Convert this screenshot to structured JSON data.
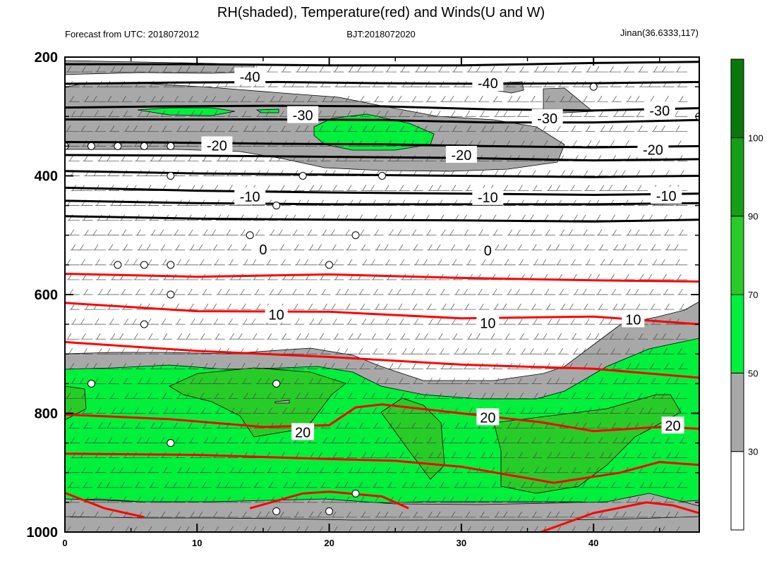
{
  "chart_data": {
    "type": "contour",
    "title": "RH(shaded), Temperature(red) and Winds(U and W)",
    "subtitle_left": "Forecast from UTC: 2018072012",
    "subtitle_center": "BJT:2018072020",
    "subtitle_right": "Jinan(36.6333,117)",
    "x_range": [
      0,
      48
    ],
    "x_ticks": [
      "0",
      "10",
      "20",
      "30",
      "40"
    ],
    "x_tick_values": [
      0,
      10,
      20,
      30,
      40
    ],
    "y_range": [
      200,
      1000
    ],
    "y_ticks": [
      "200",
      "400",
      "600",
      "800",
      "1000"
    ],
    "y_tick_values": [
      200,
      400,
      600,
      800,
      1000
    ],
    "colorbar": {
      "labels": [
        "30",
        "50",
        "70",
        "90",
        "100"
      ],
      "bins": [
        {
          "from": 0,
          "to": 30,
          "color": "#ffffff"
        },
        {
          "from": 30,
          "to": 50,
          "color": "#a8a8a8"
        },
        {
          "from": 50,
          "to": 70,
          "color": "#00f03c"
        },
        {
          "from": 70,
          "to": 90,
          "color": "#28cc28"
        },
        {
          "from": 90,
          "to": 100,
          "color": "#14a014"
        },
        {
          "from": 100,
          "to": 110,
          "color": "#0a780a"
        }
      ]
    },
    "temperature_contours": [
      {
        "level": -40,
        "color": "#000000",
        "points": [
          [
            0,
            212
          ],
          [
            10,
            212
          ],
          [
            20,
            214
          ],
          [
            30,
            214
          ],
          [
            40,
            210
          ],
          [
            48,
            208
          ]
        ]
      },
      {
        "level": -40,
        "color": "#000000",
        "points": [
          [
            0,
            245
          ],
          [
            8,
            243
          ],
          [
            16,
            242
          ],
          [
            24,
            244
          ],
          [
            32,
            245
          ],
          [
            40,
            244
          ],
          [
            48,
            242
          ]
        ]
      },
      {
        "level": -30,
        "color": "#000000",
        "points": [
          [
            0,
            285
          ],
          [
            8,
            283
          ],
          [
            16,
            282
          ],
          [
            24,
            283
          ],
          [
            32,
            288
          ],
          [
            40,
            290
          ],
          [
            48,
            286
          ]
        ]
      },
      {
        "level": -30,
        "color": "#000000",
        "points": [
          [
            0,
            305
          ],
          [
            8,
            305
          ],
          [
            16,
            305
          ],
          [
            24,
            306
          ],
          [
            32,
            310
          ],
          [
            40,
            310
          ],
          [
            48,
            306
          ]
        ]
      },
      {
        "level": -20,
        "color": "#000000",
        "points": [
          [
            0,
            343
          ],
          [
            8,
            344
          ],
          [
            16,
            346
          ],
          [
            24,
            347
          ],
          [
            32,
            350
          ],
          [
            40,
            352
          ],
          [
            48,
            350
          ]
        ]
      },
      {
        "level": -20,
        "color": "#000000",
        "points": [
          [
            0,
            365
          ],
          [
            10,
            366
          ],
          [
            20,
            368
          ],
          [
            30,
            370
          ],
          [
            40,
            374
          ],
          [
            48,
            372
          ]
        ]
      },
      {
        "level": -10,
        "color": "#000000",
        "points": [
          [
            0,
            392
          ],
          [
            10,
            396
          ],
          [
            20,
            398
          ],
          [
            30,
            400
          ],
          [
            40,
            402
          ],
          [
            48,
            400
          ]
        ]
      },
      {
        "level": -10,
        "color": "#000000",
        "points": [
          [
            0,
            420
          ],
          [
            10,
            425
          ],
          [
            20,
            428
          ],
          [
            30,
            430
          ],
          [
            40,
            432
          ],
          [
            48,
            430
          ]
        ]
      },
      {
        "level": -10,
        "color": "#000000",
        "points": [
          [
            0,
            442
          ],
          [
            10,
            446
          ],
          [
            20,
            448
          ],
          [
            30,
            448
          ],
          [
            40,
            448
          ],
          [
            48,
            446
          ]
        ]
      },
      {
        "level": 0,
        "color": "#000000",
        "points": [
          [
            0,
            468
          ],
          [
            10,
            472
          ],
          [
            20,
            474
          ],
          [
            30,
            475
          ],
          [
            40,
            477
          ],
          [
            48,
            474
          ]
        ]
      },
      {
        "level": 10,
        "color": "#ff0000",
        "points": [
          [
            0,
            565
          ],
          [
            10,
            570
          ],
          [
            20,
            566
          ],
          [
            30,
            572
          ],
          [
            40,
            576
          ],
          [
            48,
            578
          ]
        ]
      },
      {
        "level": 10,
        "color": "#ff0000",
        "points": [
          [
            0,
            614
          ],
          [
            10,
            628
          ],
          [
            20,
            629
          ],
          [
            30,
            640
          ],
          [
            40,
            637
          ],
          [
            48,
            650
          ]
        ]
      },
      {
        "level": 20,
        "color": "#ff0000",
        "points": [
          [
            0,
            680
          ],
          [
            10,
            695
          ],
          [
            20,
            705
          ],
          [
            30,
            718
          ],
          [
            40,
            725
          ],
          [
            48,
            740
          ]
        ]
      },
      {
        "level": 20,
        "color": "#ff0000",
        "points": [
          [
            0,
            802
          ],
          [
            8,
            810
          ],
          [
            15,
            823
          ],
          [
            20,
            820
          ],
          [
            22,
            790
          ],
          [
            24,
            785
          ],
          [
            30,
            800
          ],
          [
            36,
            815
          ],
          [
            40,
            830
          ],
          [
            45,
            823
          ],
          [
            48,
            826
          ]
        ]
      },
      {
        "level": 20,
        "color": "#ff0000",
        "points": [
          [
            0,
            868
          ],
          [
            10,
            870
          ],
          [
            20,
            877
          ],
          [
            25,
            880
          ],
          [
            30,
            890
          ],
          [
            37,
            917
          ],
          [
            42,
            900
          ],
          [
            45,
            882
          ],
          [
            48,
            887
          ]
        ]
      },
      {
        "level": 20,
        "color": "#ff0000",
        "points": [
          [
            0,
            934
          ],
          [
            3,
            960
          ],
          [
            6,
            975
          ]
        ]
      },
      {
        "level": 20,
        "color": "#ff0000",
        "points": [
          [
            14,
            960
          ],
          [
            18,
            935
          ],
          [
            20,
            932
          ],
          [
            24,
            940
          ],
          [
            26,
            960
          ]
        ]
      },
      {
        "level": 20,
        "color": "#ff0000",
        "points": [
          [
            36,
            1000
          ],
          [
            40,
            968
          ],
          [
            44,
            950
          ],
          [
            46,
            955
          ],
          [
            48,
            968
          ]
        ]
      }
    ],
    "contour_labels": [
      {
        "text": "-40",
        "x": 14,
        "y": 233
      },
      {
        "text": "-40",
        "x": 32,
        "y": 244
      },
      {
        "text": "-30",
        "x": 18,
        "y": 298
      },
      {
        "text": "-30",
        "x": 36.5,
        "y": 303
      },
      {
        "text": "-30",
        "x": 45,
        "y": 290
      },
      {
        "text": "-20",
        "x": 11.5,
        "y": 349
      },
      {
        "text": "-20",
        "x": 30,
        "y": 365
      },
      {
        "text": "-20",
        "x": 44.5,
        "y": 356
      },
      {
        "text": "-10",
        "x": 14,
        "y": 435
      },
      {
        "text": "-10",
        "x": 32,
        "y": 436
      },
      {
        "text": "-10",
        "x": 45.5,
        "y": 434
      },
      {
        "text": "0",
        "x": 15,
        "y": 524
      },
      {
        "text": "0",
        "x": 32,
        "y": 526
      },
      {
        "text": "10",
        "x": 16,
        "y": 634
      },
      {
        "text": "10",
        "x": 32,
        "y": 648
      },
      {
        "text": "10",
        "x": 43,
        "y": 642
      },
      {
        "text": "20",
        "x": 18,
        "y": 832
      },
      {
        "text": "20",
        "x": 32,
        "y": 807
      },
      {
        "text": "20",
        "x": 46,
        "y": 821
      }
    ],
    "calm_markers": [
      [
        0,
        350
      ],
      [
        2,
        350
      ],
      [
        4,
        350
      ],
      [
        6,
        350
      ],
      [
        8,
        350
      ],
      [
        8,
        400
      ],
      [
        18,
        400
      ],
      [
        24,
        400
      ],
      [
        16,
        450
      ],
      [
        14,
        500
      ],
      [
        22,
        500
      ],
      [
        4,
        550
      ],
      [
        6,
        550
      ],
      [
        8,
        550
      ],
      [
        20,
        550
      ],
      [
        8,
        600
      ],
      [
        6,
        650
      ],
      [
        2,
        750
      ],
      [
        16,
        750
      ],
      [
        8,
        850
      ],
      [
        22,
        935
      ],
      [
        16,
        965
      ],
      [
        20,
        965
      ],
      [
        40,
        250
      ],
      [
        48,
        300
      ]
    ],
    "grid": false,
    "legend": "colorbar-right"
  }
}
